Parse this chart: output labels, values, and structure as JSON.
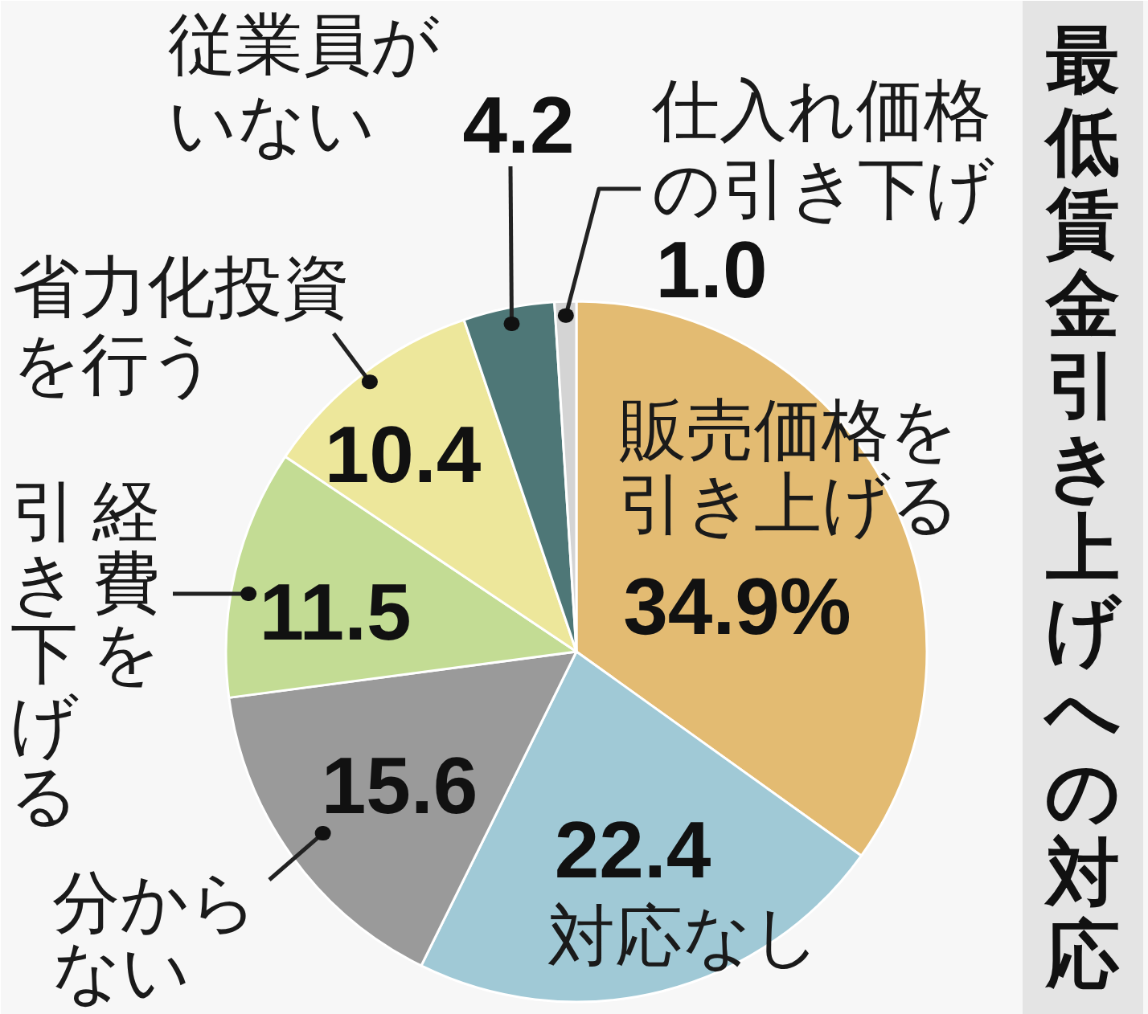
{
  "chart_data": {
    "type": "pie",
    "title": "最低賃金引き上げへの対応",
    "categories": [
      "販売価格を引き上げる",
      "対応なし",
      "分からない",
      "経費を引き下げる",
      "省力化投資を行う",
      "従業員がいない",
      "仕入れ価格の引き下げ"
    ],
    "values": [
      34.9,
      22.4,
      15.6,
      11.5,
      10.4,
      4.2,
      1.0
    ],
    "colors": [
      "#e3bb72",
      "#a0c9d6",
      "#9a9a9a",
      "#c3dc94",
      "#ede79b",
      "#4e7777",
      "#d4d4d4"
    ],
    "value_labels": [
      "34.9%",
      "22.4",
      "15.6",
      "11.5",
      "10.4",
      "4.2",
      "1.0"
    ]
  }
}
